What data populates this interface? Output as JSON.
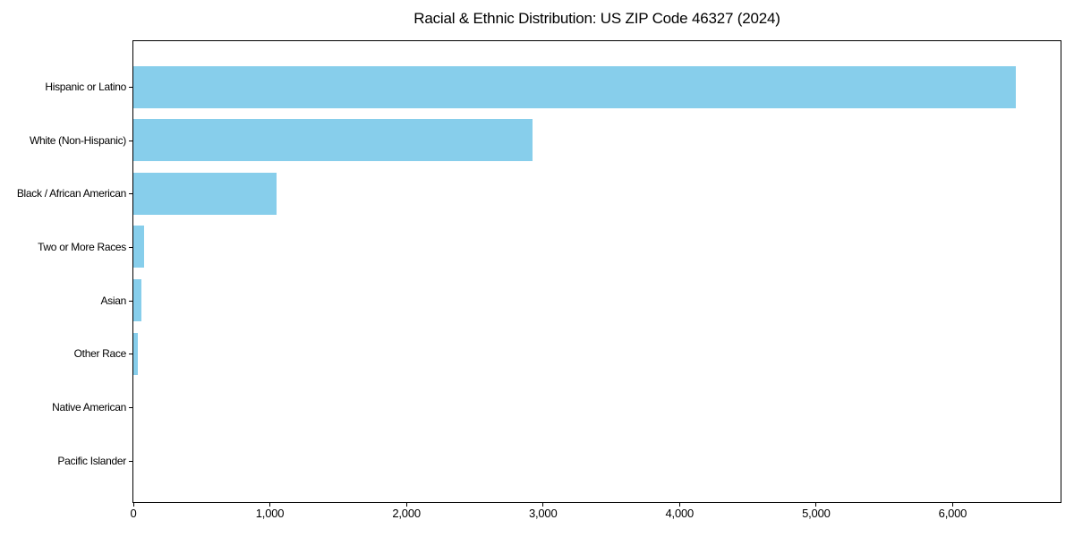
{
  "page": {
    "background": "#ffffff"
  },
  "chart_data": {
    "type": "bar",
    "orientation": "horizontal",
    "title": "Racial & Ethnic Distribution: US ZIP Code 46327 (2024)",
    "categories": [
      "Hispanic or Latino",
      "White (Non-Hispanic)",
      "Black / African American",
      "Two or More Races",
      "Asian",
      "Other Race",
      "Native American",
      "Pacific Islander"
    ],
    "values": [
      6460,
      2925,
      1048,
      78,
      57,
      30,
      0,
      0
    ],
    "bar_color": "#87CEEB",
    "xlabel": "",
    "ylabel": "",
    "xlim": [
      0,
      6790
    ],
    "x_ticks": [
      0,
      1000,
      2000,
      3000,
      4000,
      5000,
      6000
    ],
    "x_tick_labels": [
      "0",
      "1,000",
      "2,000",
      "3,000",
      "4,000",
      "5,000",
      "6,000"
    ],
    "grid": false,
    "legend": "none",
    "plot_background": "#ffffff",
    "axis_color": "#000000"
  }
}
